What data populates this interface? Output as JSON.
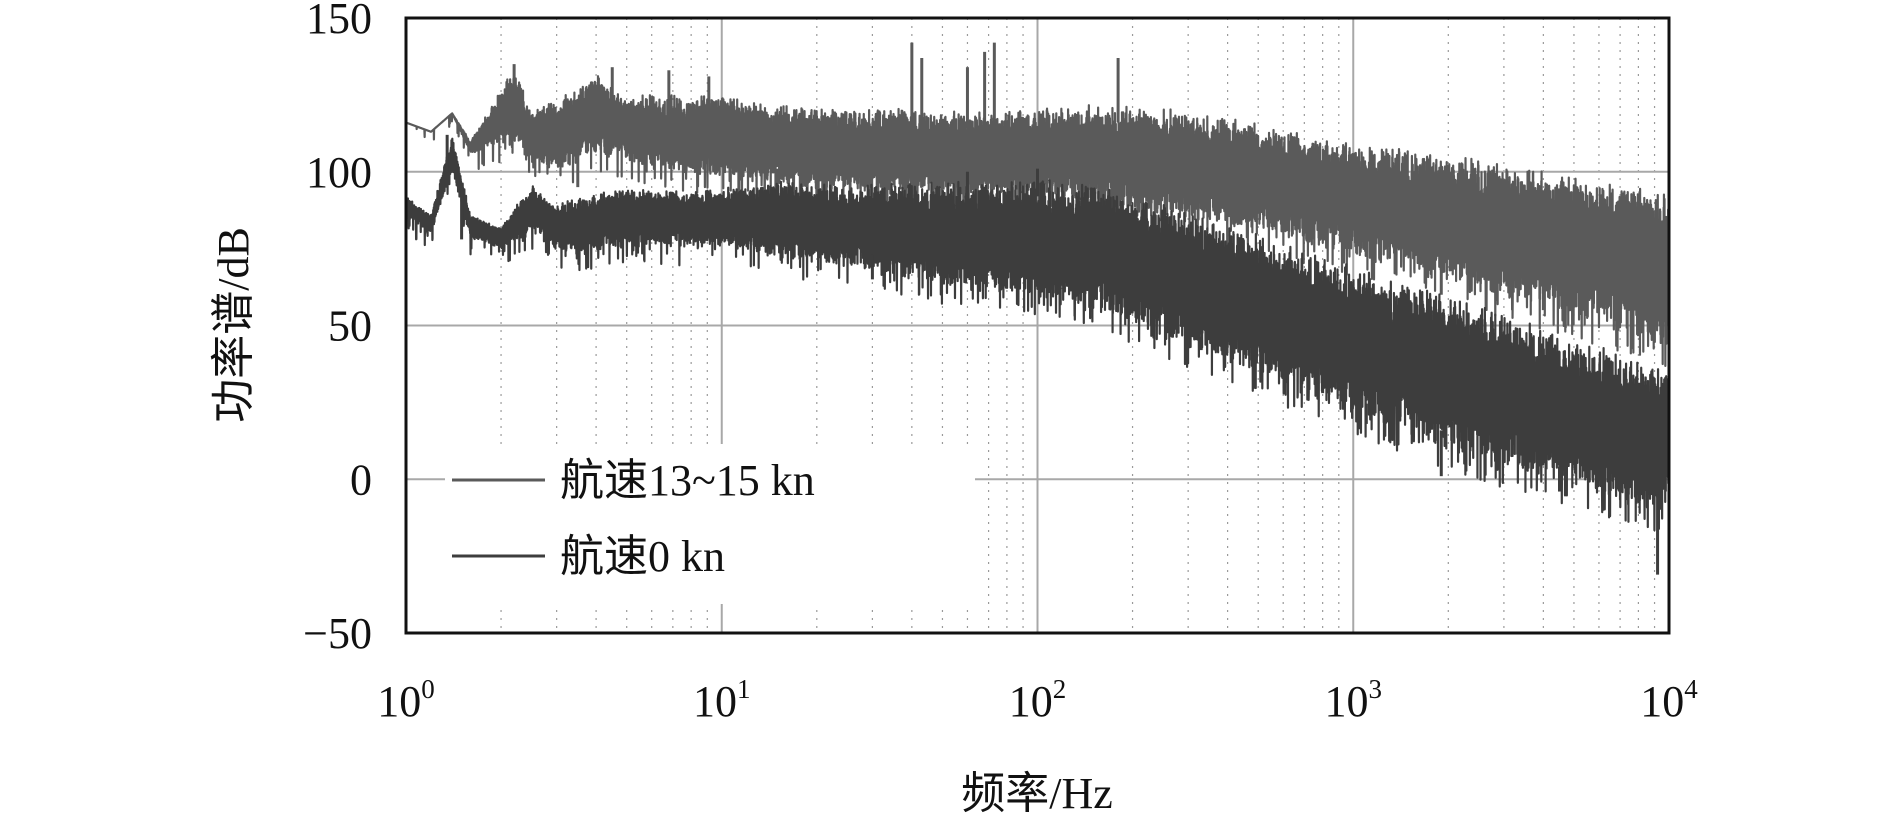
{
  "chart_data": {
    "type": "line",
    "title": "",
    "xlabel": "频率/Hz",
    "ylabel": "功率谱/dB",
    "x_scale": "log",
    "xlim": [
      1,
      10000
    ],
    "ylim": [
      -50,
      150
    ],
    "x_ticks": [
      {
        "value": 1,
        "base": "10",
        "exp": "0"
      },
      {
        "value": 10,
        "base": "10",
        "exp": "1"
      },
      {
        "value": 100,
        "base": "10",
        "exp": "2"
      },
      {
        "value": 1000,
        "base": "10",
        "exp": "3"
      },
      {
        "value": 10000,
        "base": "10",
        "exp": "4"
      }
    ],
    "y_ticks": [
      {
        "value": 150,
        "label": "150"
      },
      {
        "value": 100,
        "label": "100"
      },
      {
        "value": 50,
        "label": "50"
      },
      {
        "value": 0,
        "label": "0"
      },
      {
        "value": -50,
        "label": "−50"
      }
    ],
    "grid": true,
    "minor_grid": true,
    "legend_position": "bottom-left",
    "series": [
      {
        "name": "航速13~15 kn",
        "color": "#5a5a5a",
        "x": [
          1,
          1.2,
          1.4,
          1.6,
          2.2,
          2.5,
          3,
          4,
          5,
          6,
          8,
          10,
          15,
          20,
          30,
          50,
          70,
          100,
          150,
          200,
          300,
          500,
          700,
          1000,
          1500,
          2000,
          3000,
          5000,
          7000,
          10000
        ],
        "upper": [
          116,
          113,
          119,
          110,
          134,
          120,
          124,
          132,
          124,
          126,
          124,
          126,
          122,
          121,
          121,
          120,
          120,
          121,
          122,
          122,
          120,
          116,
          113,
          110,
          108,
          106,
          103,
          99,
          97,
          94
        ],
        "lower": [
          116,
          113,
          119,
          106,
          110,
          102,
          100,
          106,
          103,
          101,
          99,
          98,
          95,
          94,
          93,
          92,
          92,
          91,
          89,
          87,
          84,
          80,
          76,
          72,
          68,
          64,
          58,
          52,
          47,
          42
        ],
        "spikes": [
          {
            "x": 2.2,
            "y": 135
          },
          {
            "x": 4.5,
            "y": 134
          },
          {
            "x": 6.8,
            "y": 133
          },
          {
            "x": 9.1,
            "y": 131
          },
          {
            "x": 40,
            "y": 142
          },
          {
            "x": 43,
            "y": 137
          },
          {
            "x": 60,
            "y": 134
          },
          {
            "x": 68,
            "y": 139
          },
          {
            "x": 73,
            "y": 142
          },
          {
            "x": 180,
            "y": 137
          }
        ],
        "dips": [
          {
            "x": 3.5,
            "y": 95
          },
          {
            "x": 15,
            "y": 89
          },
          {
            "x": 20,
            "y": 86
          },
          {
            "x": 1900,
            "y": 60
          },
          {
            "x": 4000,
            "y": 55
          }
        ]
      },
      {
        "name": "航速0 kn",
        "color": "#3d3d3d",
        "x": [
          1,
          1.2,
          1.4,
          1.6,
          2,
          2.5,
          3,
          4,
          5,
          6,
          8,
          10,
          15,
          20,
          30,
          50,
          70,
          100,
          150,
          200,
          300,
          500,
          700,
          1000,
          1500,
          2000,
          3000,
          5000,
          7000,
          10000
        ],
        "upper": [
          92,
          86,
          112,
          86,
          82,
          96,
          90,
          93,
          95,
          94,
          94,
          95,
          97,
          96,
          96,
          97,
          97,
          98,
          96,
          93,
          87,
          80,
          75,
          70,
          65,
          60,
          54,
          46,
          41,
          36
        ],
        "lower": [
          86,
          80,
          100,
          78,
          75,
          80,
          74,
          74,
          76,
          76,
          75,
          75,
          72,
          70,
          67,
          63,
          61,
          58,
          54,
          50,
          42,
          33,
          27,
          20,
          14,
          9,
          3,
          -3,
          -8,
          -12
        ],
        "spikes": [
          {
            "x": 1.35,
            "y": 112
          },
          {
            "x": 60,
            "y": 100
          },
          {
            "x": 100,
            "y": 101
          }
        ],
        "dips": [
          {
            "x": 1.5,
            "y": 78
          },
          {
            "x": 30,
            "y": 65
          },
          {
            "x": 120,
            "y": 62
          },
          {
            "x": 330,
            "y": 42
          },
          {
            "x": 800,
            "y": 28
          },
          {
            "x": 1100,
            "y": 18
          },
          {
            "x": 1900,
            "y": 1
          },
          {
            "x": 4500,
            "y": -4
          },
          {
            "x": 9200,
            "y": -31
          }
        ]
      }
    ]
  }
}
